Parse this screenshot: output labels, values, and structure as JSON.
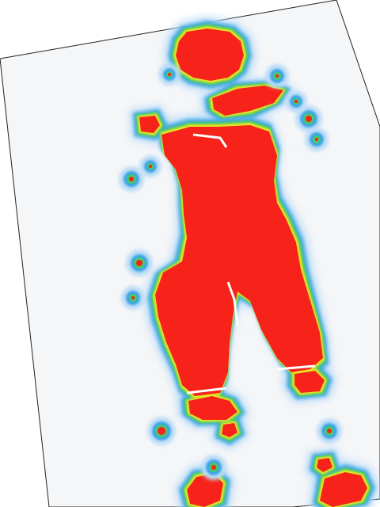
{
  "image": {
    "kind": "pressure-heatmap-photo",
    "subject": "human-silhouette",
    "background_color": "#ffffff",
    "mat_color": "#f5f6f8",
    "colors": {
      "high": "#f7231a",
      "upper": "#f59f1e",
      "mid": "#e8e823",
      "low": "#49c86a",
      "trace": "#3aa6e6",
      "faint": "#bcdcf6"
    }
  }
}
